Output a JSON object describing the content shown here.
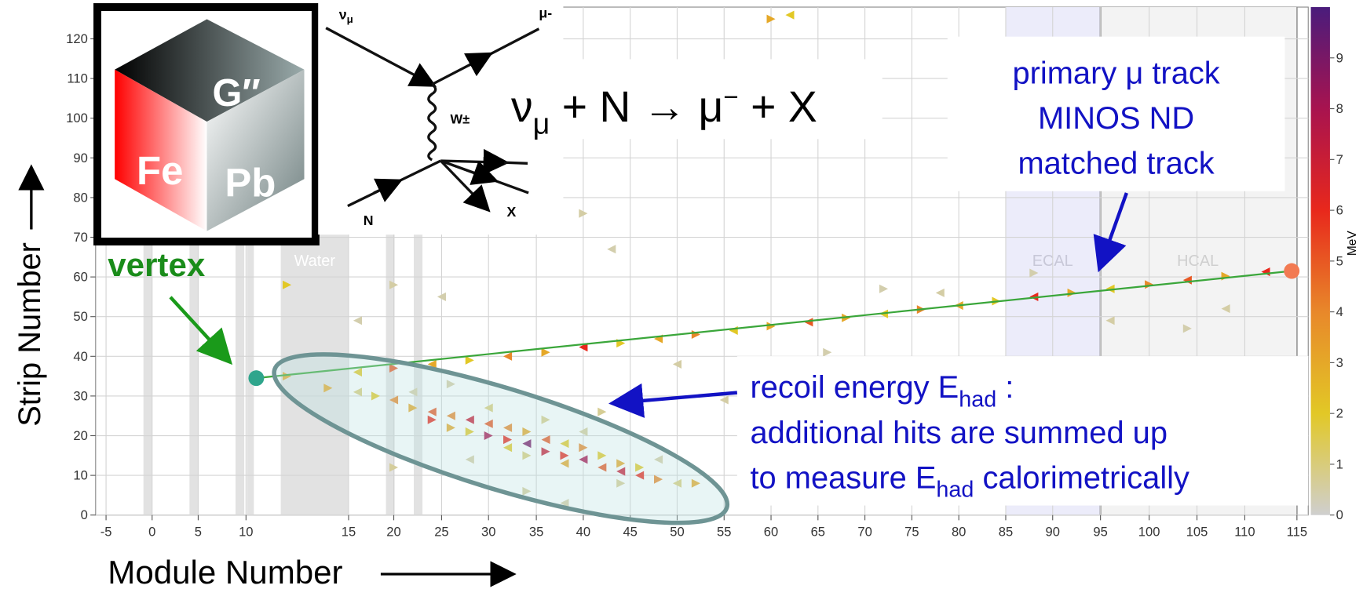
{
  "chart_data": {
    "type": "scatter",
    "xlabel": "Module Number",
    "ylabel": "Strip Number",
    "xlim": [
      -9,
      116
    ],
    "ylim": [
      0,
      128
    ],
    "xticks": [
      -5,
      0,
      5,
      10,
      15,
      20,
      25,
      30,
      35,
      40,
      45,
      50,
      55,
      60,
      65,
      70,
      75,
      80,
      85,
      90,
      95,
      100,
      105,
      110,
      115
    ],
    "yticks": [
      0,
      10,
      20,
      30,
      40,
      50,
      60,
      70,
      80,
      90,
      100,
      110,
      120
    ],
    "grid": true,
    "regions": [
      "Water",
      "ECAL",
      "HCAL"
    ],
    "hits": {
      "x": [
        12,
        16,
        20,
        24,
        28,
        32,
        36,
        40,
        44,
        48,
        52,
        56,
        60,
        64,
        68,
        72,
        76,
        80,
        84,
        88,
        92,
        96,
        100,
        104,
        108,
        112,
        14,
        16,
        18,
        20,
        22,
        24,
        24,
        26,
        26,
        28,
        28,
        30,
        30,
        32,
        32,
        32,
        34,
        34,
        34,
        36,
        36,
        38,
        38,
        38,
        40,
        40,
        42,
        42,
        44,
        44,
        46,
        46,
        48,
        50,
        52,
        22,
        26,
        30,
        36,
        40,
        44,
        48,
        20,
        28,
        34,
        38,
        42,
        16,
        20,
        25,
        40,
        43,
        60,
        62,
        72,
        78,
        88,
        96,
        104,
        108,
        12,
        50,
        66,
        55,
        64
      ],
      "y": [
        35,
        36,
        37,
        38,
        39,
        40,
        41,
        42.3,
        43.3,
        44.4,
        45.5,
        46.5,
        47.6,
        48.6,
        49.7,
        50.7,
        51.8,
        52.8,
        53.9,
        55,
        56,
        57,
        58.1,
        59.2,
        60.2,
        61.3,
        32,
        31,
        30,
        29,
        27,
        26,
        24,
        25,
        22,
        24,
        21,
        23,
        20,
        22,
        19,
        17,
        21,
        18,
        15,
        19,
        16,
        18,
        15,
        13,
        17,
        14,
        15,
        12,
        13,
        11,
        12,
        10,
        9,
        8,
        8,
        31,
        33,
        27,
        24,
        21,
        8,
        14,
        12,
        14,
        6,
        3,
        26,
        49,
        58,
        55,
        76,
        67,
        125,
        126,
        57,
        56,
        61,
        49,
        47,
        52,
        58,
        38,
        41,
        29,
        32
      ],
      "energy": [
        3,
        2,
        5,
        3,
        2,
        4,
        3,
        6,
        2,
        3,
        4,
        2,
        3,
        5,
        3,
        2,
        4,
        3,
        2,
        6,
        3,
        2,
        4,
        5,
        3,
        6,
        3,
        1,
        2,
        4,
        3,
        5,
        6,
        4,
        3,
        7,
        2,
        5,
        8,
        4,
        6,
        2,
        3,
        9,
        1,
        5,
        7,
        2,
        6,
        3,
        4,
        8,
        2,
        5,
        3,
        7,
        2,
        6,
        4,
        1,
        3,
        0.5,
        0.5,
        1,
        0.8,
        0.6,
        0.7,
        0.5,
        0.6,
        0.5,
        0.6,
        0.5,
        0.7,
        0.4,
        0.5,
        0.4,
        0.5,
        0.4,
        3,
        2,
        0.4,
        0.5,
        0.4,
        0.5,
        0.4,
        0.5,
        2,
        0.5,
        0.4,
        0.5,
        0.4
      ]
    },
    "track": {
      "x": [
        10.5,
        114.5
      ],
      "y": [
        34.5,
        61.5
      ],
      "color": "#3aa63a"
    },
    "vertex": {
      "x": 10.5,
      "y": 34.5,
      "color": "#2fa58c"
    },
    "endpoint": {
      "x": 114.5,
      "y": 61.5,
      "color": "#f27a52"
    },
    "colorbar": {
      "label": "MeV",
      "lim": [
        0,
        10
      ],
      "ticks": [
        0,
        1,
        2,
        3,
        4,
        5,
        6,
        7,
        8,
        9
      ],
      "colors": [
        "#cfcfcf",
        "#e2c826",
        "#e8882a",
        "#e8281c",
        "#a8134f",
        "#4a1c7c"
      ]
    }
  },
  "annotations": {
    "vertex": "vertex",
    "muon_track": [
      "primary μ track",
      "MINOS ND",
      "matched track"
    ],
    "recoil": [
      [
        "recoil energy E",
        "had",
        " :"
      ],
      [
        "additional hits are summed up"
      ],
      [
        "to measure E",
        "had",
        " calorimetrically"
      ]
    ]
  },
  "reaction": [
    "ν",
    "μ",
    " + N → μ",
    "−",
    " + X"
  ],
  "feynman": {
    "nu": "ν",
    "nu_sub": "μ",
    "mu": "μ-",
    "w": "W±",
    "n": "N",
    "x": "X"
  },
  "logo": [
    "G″",
    "Fe",
    "Pb"
  ]
}
